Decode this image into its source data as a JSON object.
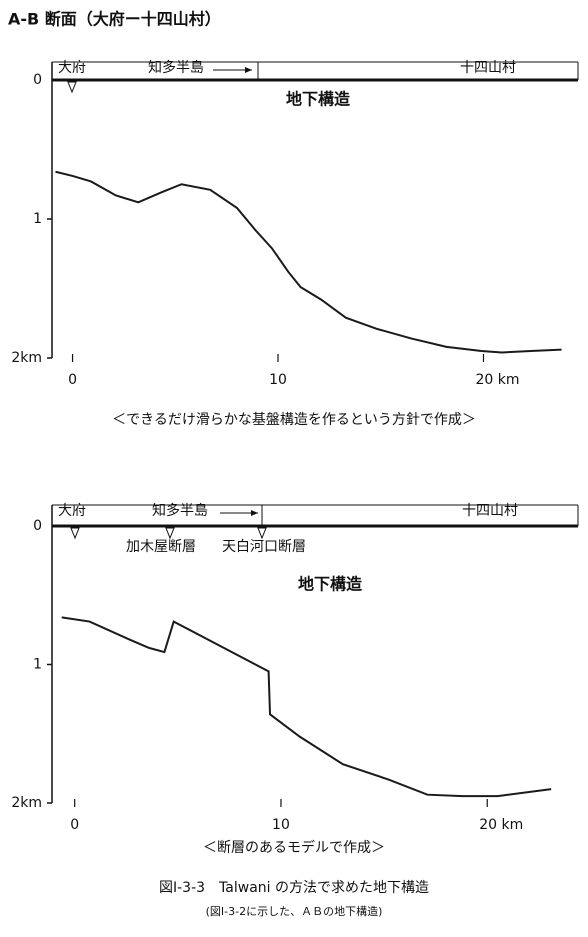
{
  "title": "A-B 断面（大府ー十四山村）",
  "chart_data": [
    {
      "type": "line",
      "place_labels": [
        "大府",
        "知多半島",
        "十四山村"
      ],
      "label": "地下構造",
      "caption": "＜できるだけ滑らかな基盤構造を作るという方針で作成＞",
      "xlim": [
        -1,
        24.6
      ],
      "ylim": [
        0,
        2
      ],
      "xticks": [
        0,
        10,
        {
          "value": 20,
          "label": "20 km"
        }
      ],
      "yticks": [
        0,
        1,
        {
          "value": 2,
          "label": "2km"
        }
      ],
      "x": [
        -0.83,
        0,
        0.9,
        2.1,
        3.2,
        4.3,
        5.3,
        6.7,
        8.0,
        8.9,
        9.7,
        10.5,
        11.1,
        12.1,
        13.3,
        14.8,
        16.5,
        18.2,
        19.9,
        20.9,
        22.3,
        23.8
      ],
      "series": [
        {
          "color": "#1a1a1a",
          "values": [
            0.66,
            0.69,
            0.73,
            0.83,
            0.88,
            0.81,
            0.75,
            0.79,
            0.92,
            1.08,
            1.21,
            1.38,
            1.49,
            1.58,
            1.71,
            1.79,
            1.86,
            1.92,
            1.95,
            1.96,
            1.95,
            1.94
          ]
        }
      ]
    },
    {
      "type": "line",
      "place_labels": [
        "大府",
        "知多半島",
        "十四山村"
      ],
      "fault_labels": [
        "加木屋断層",
        "天白河口断層"
      ],
      "label": "地下構造",
      "caption": "＜断層のあるモデルで作成＞",
      "xlim": [
        -1.1,
        24.4
      ],
      "ylim": [
        0,
        2
      ],
      "xticks": [
        0,
        10,
        {
          "value": 20,
          "label": "20 km"
        }
      ],
      "yticks": [
        0,
        1,
        {
          "value": 2,
          "label": "2km"
        }
      ],
      "x": [
        -0.63,
        0.72,
        2.66,
        3.6,
        4.35,
        4.8,
        9.4,
        9.47,
        10.9,
        13.0,
        15.2,
        17.1,
        18.8,
        20.5,
        23.1
      ],
      "series": [
        {
          "color": "#1a1a1a",
          "values": [
            0.66,
            0.69,
            0.82,
            0.88,
            0.91,
            0.69,
            1.05,
            1.36,
            1.52,
            1.72,
            1.83,
            1.94,
            1.95,
            1.95,
            1.9
          ]
        }
      ]
    }
  ],
  "figure_caption": "図Ⅰ-3-3　Talwani の方法で求めた地下構造",
  "figure_note": "(図Ⅰ-3-2に示した、ＡＢの地下構造)"
}
